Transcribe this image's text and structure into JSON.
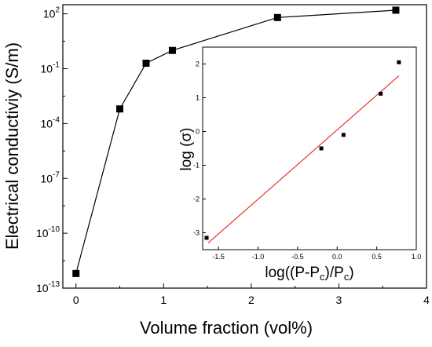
{
  "chart_data": [
    {
      "type": "line",
      "xlabel": "Volume fraction (vol%)",
      "ylabel": "Electrical conductiviy (S/m)",
      "xlim": [
        -0.15,
        4
      ],
      "ylim_exponent": [
        -13,
        2.5
      ],
      "y_scale": "log",
      "x_ticks": [
        "0",
        "1",
        "2",
        "3",
        "4"
      ],
      "y_ticks": [
        {
          "base": "10",
          "exp": "-13"
        },
        {
          "base": "10",
          "exp": "-10"
        },
        {
          "base": "10",
          "exp": "-7"
        },
        {
          "base": "10",
          "exp": "-4"
        },
        {
          "base": "10",
          "exp": "-1"
        },
        {
          "base": "10",
          "exp": "2"
        }
      ],
      "series": [
        {
          "x": [
            0,
            0.5,
            0.8,
            1.1,
            2.3,
            3.65
          ],
          "y_log10": [
            -12.2,
            -3.2,
            -0.7,
            0.0,
            1.8,
            2.2
          ],
          "marker": "square",
          "color": "#000000"
        }
      ]
    },
    {
      "type": "scatter",
      "xlabel": "log((P-P",
      "xlabel_sub": "c",
      "xlabel_mid": ")/P",
      "xlabel_sub2": "c",
      "xlabel_end": ")",
      "ylabel": "log (σ)",
      "xlim": [
        -1.7,
        1.0
      ],
      "ylim": [
        -3.5,
        2.5
      ],
      "x_ticks": [
        "-1.5",
        "-1.0",
        "-0.5",
        "0.0",
        "0.5",
        "1.0"
      ],
      "y_ticks": [
        "-3",
        "-2",
        "-1",
        "0",
        "1",
        "2"
      ],
      "points": {
        "x": [
          -1.65,
          -0.2,
          0.08,
          0.55,
          0.78
        ],
        "y": [
          -3.15,
          -0.5,
          -0.1,
          1.12,
          2.05
        ],
        "marker": "square",
        "color": "#000000"
      },
      "fit_line": {
        "x": [
          -1.63,
          0.78
        ],
        "y": [
          -3.3,
          1.65
        ],
        "color": "#e8241b"
      }
    }
  ]
}
